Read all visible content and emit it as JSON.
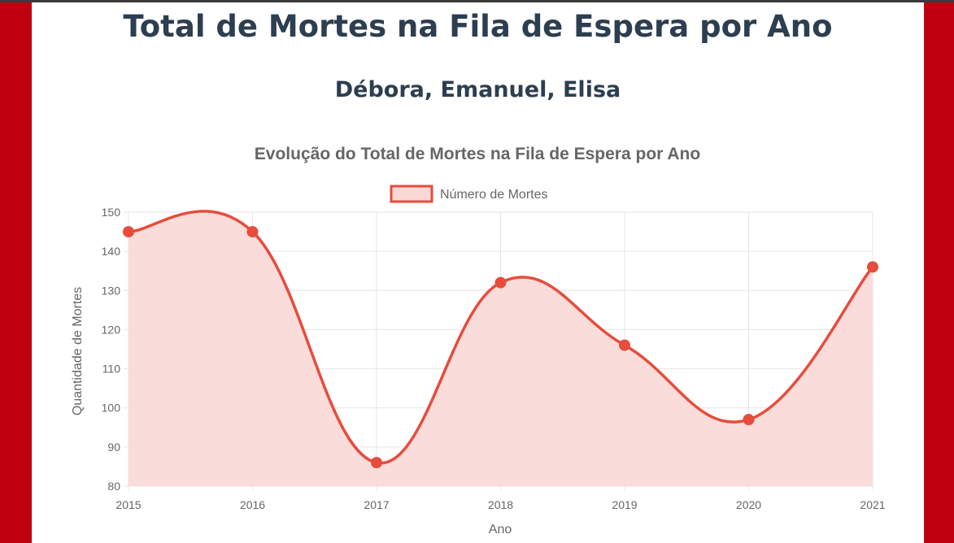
{
  "page": {
    "title": "Total de Mortes na Fila de Espera por Ano",
    "subtitle": "Débora, Emanuel, Elisa"
  },
  "colors": {
    "frame": "#c00010",
    "heading": "#2c3e50",
    "line": "#e74c3c",
    "fill": "#f9d8d6",
    "grid": "#e6e6e6",
    "text": "#666666"
  },
  "chart_data": {
    "type": "line",
    "title": "Evolução do Total de Mortes na Fila de Espera por Ano",
    "xlabel": "Ano",
    "ylabel": "Quantidade de Mortes",
    "categories": [
      "2015",
      "2016",
      "2017",
      "2018",
      "2019",
      "2020",
      "2021"
    ],
    "series": [
      {
        "name": "Número de Mortes",
        "values": [
          145,
          145,
          86,
          132,
          116,
          97,
          136
        ],
        "filled": true,
        "smooth": true
      }
    ],
    "yticks": [
      80,
      90,
      100,
      110,
      120,
      130,
      140,
      150
    ],
    "ylim": [
      80,
      150
    ],
    "grid": true,
    "legend": "top-center"
  }
}
